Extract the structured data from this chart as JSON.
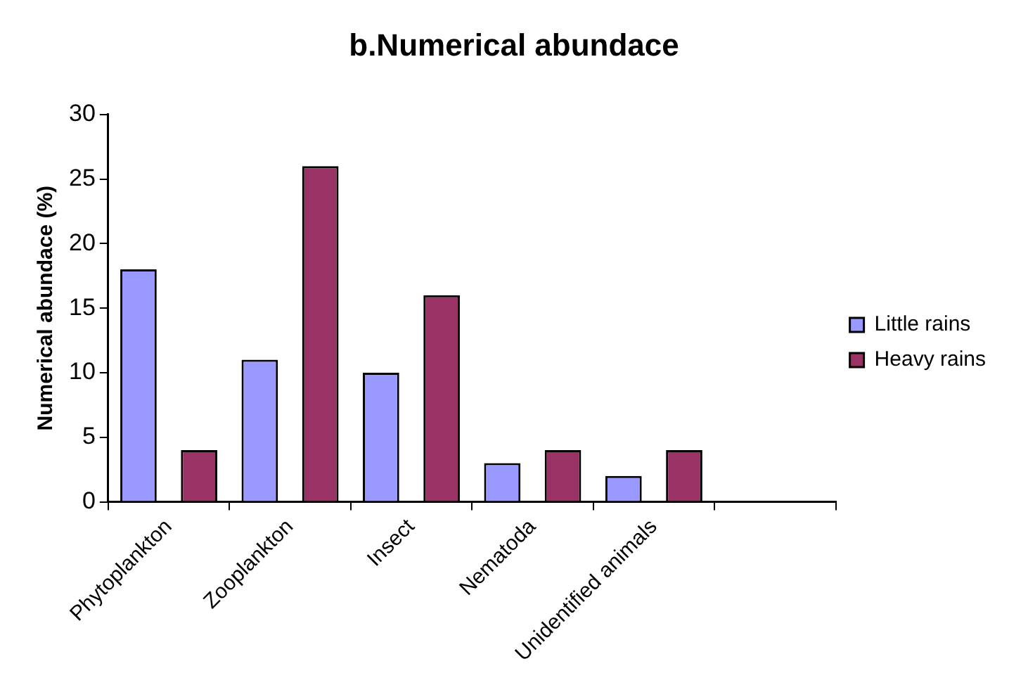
{
  "chart_data": {
    "type": "bar",
    "title": "b.Numerical abundace",
    "ylabel": "Numerical abundace (%)",
    "categories": [
      "Phytoplankton",
      "Zooplankton",
      "Insect",
      "Nematoda",
      "Unidentified animals",
      null
    ],
    "series": [
      {
        "name": "Little rains",
        "color": "#9999ff",
        "values": [
          18,
          11,
          10,
          3,
          2,
          null
        ]
      },
      {
        "name": "Heavy rains",
        "color": "#993366",
        "values": [
          4,
          26,
          16,
          4,
          4,
          null
        ]
      }
    ],
    "ylim": [
      0,
      30
    ],
    "yticks": [
      0,
      5,
      10,
      15,
      20,
      25,
      30
    ],
    "grid": false,
    "legend": "right"
  }
}
